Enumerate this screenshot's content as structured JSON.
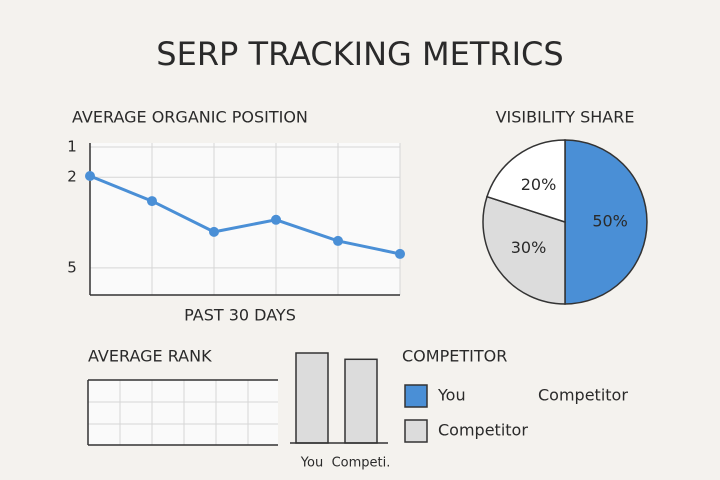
{
  "title": "SERP TRACKING METRICS",
  "chart_data": [
    {
      "type": "line",
      "title": "AVERAGE ORGANIC POSITION",
      "xlabel": "PAST 30 DAYS",
      "categories": [
        null,
        null,
        null,
        null,
        null,
        null
      ],
      "values": [
        1.96,
        2.79,
        3.81,
        3.41,
        4.11,
        4.54
      ],
      "color": "#4a8fd6",
      "ylim": [
        1,
        5.9
      ],
      "yticks": [
        1,
        2,
        5
      ],
      "inverted": true,
      "grid": true
    },
    {
      "type": "pie",
      "title": "VISIBILITY SHARE",
      "values": [
        50,
        30,
        20
      ],
      "value_labels": [
        "50%",
        "30%",
        "20%"
      ],
      "colors": [
        "#4a8fd6",
        "#dcdcdc",
        "#ffffff"
      ]
    },
    {
      "type": "bar",
      "title": "AVERAGE RANK",
      "categories": [
        "You",
        "Competi."
      ],
      "values": [
        100,
        93
      ],
      "ylim": [
        0,
        100
      ],
      "color": "#dcdcdc",
      "legend": {
        "title": "COMPETITOR",
        "items": [
          {
            "name": "You",
            "color": "#4a8fd6"
          },
          {
            "name": "Competitor",
            "color": "#dcdcdc"
          }
        ],
        "note": "Competitor"
      }
    }
  ]
}
